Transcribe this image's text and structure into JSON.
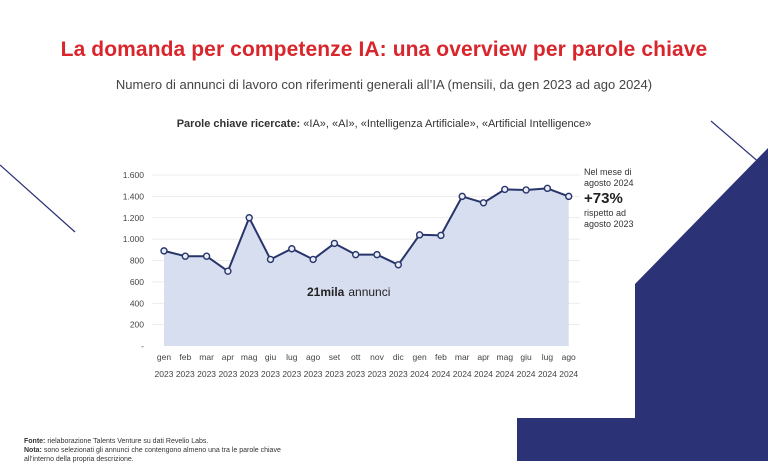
{
  "title": "La domanda per competenze IA: una overview per parole chiave",
  "subtitle": "Numero di annunci di lavoro con riferimenti generali all’IA (mensili, da gen 2023 ad ago 2024)",
  "keywords": {
    "label": "Parole chiave ricercate:",
    "value": "«IA», «AI», «Intelligenza Artificiale», «Artificial Intelligence»"
  },
  "callout": {
    "line1": "Nel mese di",
    "line2": "agosto 2024",
    "big": "+73%",
    "line3": "rispetto ad",
    "line4": "agosto 2023"
  },
  "annotation": {
    "bold": "21mila",
    "rest": "annunci"
  },
  "footer": {
    "fonte_label": "Fonte:",
    "fonte_text": "rielaborazione Talents Venture su dati Revelio Labs.",
    "nota_label": "Nota:",
    "nota_text": "sono selezionati gli annunci che contengono almeno una tra le parole chiave all’interno della propria descrizione."
  },
  "colors": {
    "title": "#d9262c",
    "line": "#27356b",
    "area": "#d5dcee",
    "marker_fill": "#e9edf7",
    "decor_navy": "#2b3275"
  },
  "chart_data": {
    "type": "area",
    "x": [
      "gen 2023",
      "feb 2023",
      "mar 2023",
      "apr 2023",
      "mag 2023",
      "giu 2023",
      "lug 2023",
      "ago 2023",
      "set 2023",
      "ott 2023",
      "nov 2023",
      "dic 2023",
      "gen 2024",
      "feb 2024",
      "mar 2024",
      "apr 2024",
      "mag 2024",
      "giu 2024",
      "lug 2024",
      "ago 2024"
    ],
    "x_month": [
      "gen",
      "feb",
      "mar",
      "apr",
      "mag",
      "giu",
      "lug",
      "ago",
      "set",
      "ott",
      "nov",
      "dic",
      "gen",
      "feb",
      "mar",
      "apr",
      "mag",
      "giu",
      "lug",
      "ago"
    ],
    "x_year": [
      "2023",
      "2023",
      "2023",
      "2023",
      "2023",
      "2023",
      "2023",
      "2023",
      "2023",
      "2023",
      "2023",
      "2023",
      "2024",
      "2024",
      "2024",
      "2024",
      "2024",
      "2024",
      "2024",
      "2024"
    ],
    "values": [
      890,
      840,
      840,
      700,
      1200,
      810,
      910,
      810,
      960,
      855,
      855,
      760,
      1040,
      1035,
      1400,
      1340,
      1465,
      1460,
      1475,
      1400
    ],
    "yticks": [
      0,
      200,
      400,
      600,
      800,
      1000,
      1200,
      1400,
      1600
    ],
    "ytick_labels": [
      "-",
      "200",
      "400",
      "600",
      "800",
      "1.000",
      "1.200",
      "1.400",
      "1.600"
    ],
    "ylim": [
      0,
      1600
    ],
    "grid": true,
    "markers": true
  }
}
